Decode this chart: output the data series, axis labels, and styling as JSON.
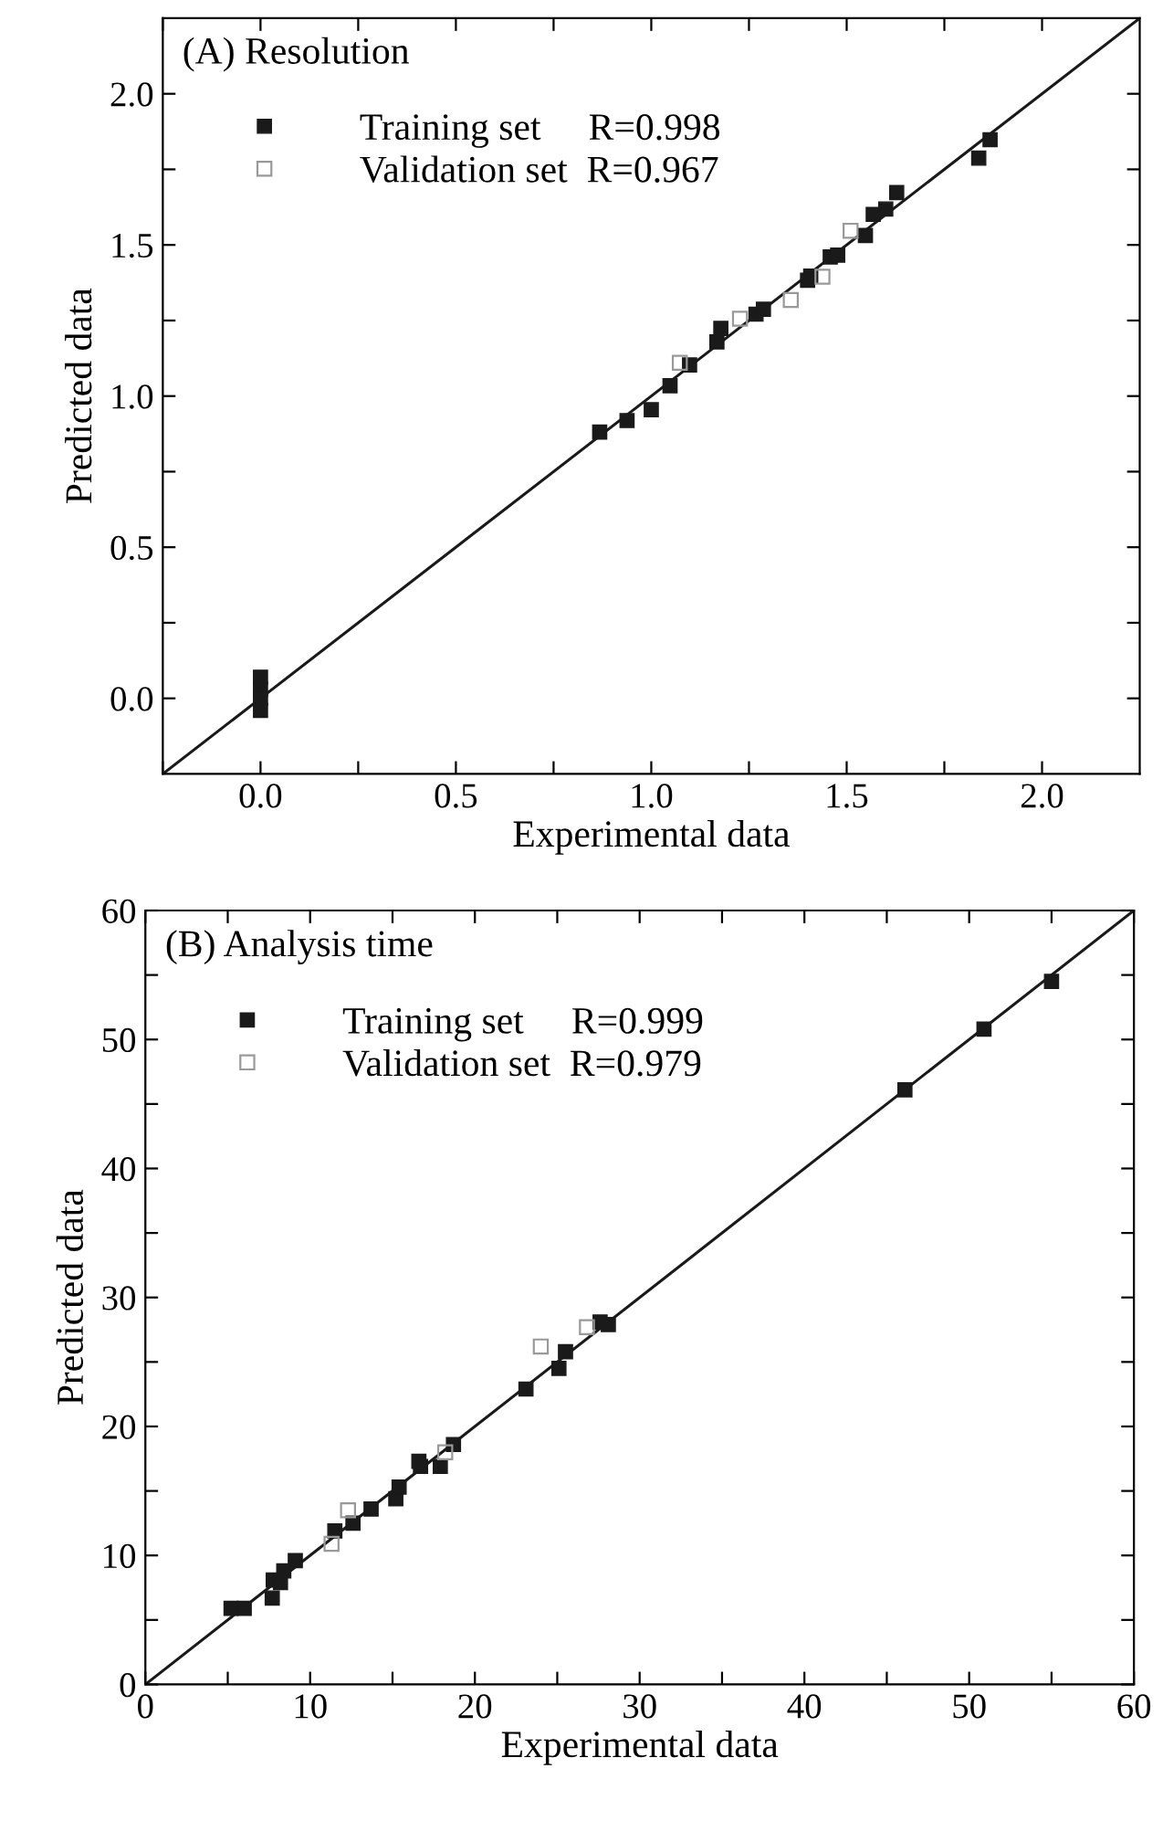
{
  "chart_data": [
    {
      "type": "scatter",
      "title": "(A) Resolution",
      "xlabel": "Experimental data",
      "ylabel": "Predicted data",
      "xlim": [
        -0.25,
        2.25
      ],
      "ylim": [
        -0.25,
        2.25
      ],
      "xticks": [
        {
          "value": -0.25,
          "label": null
        },
        {
          "value": 0,
          "label": "0.0"
        },
        {
          "value": 0.25,
          "label": null
        },
        0.5,
        {
          "value": 0.75,
          "label": null
        },
        {
          "value": 1,
          "label": "1.0"
        },
        {
          "value": 1.25,
          "label": null
        },
        1.5,
        {
          "value": 1.75,
          "label": null
        },
        {
          "value": 2,
          "label": "2.0"
        }
      ],
      "yticks": [
        {
          "value": 0,
          "label": "0.0"
        },
        {
          "value": 0.25,
          "label": null
        },
        0.5,
        {
          "value": 0.75,
          "label": null
        },
        {
          "value": 1,
          "label": "1.0"
        },
        {
          "value": 1.25,
          "label": null
        },
        1.5,
        {
          "value": 1.75,
          "label": null
        },
        {
          "value": 2,
          "label": "2.0"
        }
      ],
      "legend": "top left",
      "grid": false,
      "series": [
        {
          "name": "Training set     R=0.998",
          "color": "#1a1a1a",
          "marker": "square",
          "x": [
            0,
            0,
            0,
            0,
            0.868,
            0.938,
            1.0,
            1.048,
            1.098,
            1.168,
            1.178,
            1.268,
            1.287,
            1.4,
            1.408,
            1.458,
            1.477,
            1.548,
            1.568,
            1.6,
            1.628,
            1.838,
            1.867
          ],
          "values": [
            0.07,
            0.03,
            0.0,
            -0.04,
            0.881,
            0.919,
            0.955,
            1.034,
            1.103,
            1.179,
            1.224,
            1.271,
            1.287,
            1.383,
            1.397,
            1.46,
            1.466,
            1.531,
            1.601,
            1.619,
            1.673,
            1.787,
            1.848
          ]
        },
        {
          "name": "Validation set  R=0.967",
          "color": "#999999",
          "marker": "square",
          "x": [
            1.073,
            1.227,
            1.357,
            1.438,
            1.51
          ],
          "values": [
            1.11,
            1.256,
            1.318,
            1.395,
            1.547
          ]
        },
        {
          "type": "line",
          "color": "#1a1a1a",
          "x": [
            -0.25,
            2.25
          ],
          "values": [
            -0.25,
            2.25
          ]
        }
      ]
    },
    {
      "type": "scatter",
      "title": "(B) Analysis time",
      "xlabel": "Experimental data",
      "ylabel": "Predicted data",
      "xlim": [
        0,
        60
      ],
      "ylim": [
        0,
        60
      ],
      "xticks": [
        0,
        {
          "value": 5,
          "label": null
        },
        10,
        {
          "value": 15,
          "label": null
        },
        20,
        {
          "value": 25,
          "label": null
        },
        30,
        {
          "value": 35,
          "label": null
        },
        40,
        {
          "value": 45,
          "label": null
        },
        50,
        {
          "value": 55,
          "label": null
        },
        60
      ],
      "yticks": [
        0,
        {
          "value": 5,
          "label": null
        },
        10,
        {
          "value": 15,
          "label": null
        },
        20,
        {
          "value": 25,
          "label": null
        },
        30,
        {
          "value": 35,
          "label": null
        },
        40,
        {
          "value": 45,
          "label": null
        },
        50,
        {
          "value": 55,
          "label": null
        },
        60
      ],
      "legend": "top left",
      "grid": false,
      "series": [
        {
          "name": "Training set     R=0.999",
          "color": "#1a1a1a",
          "marker": "square",
          "x": [
            5.2,
            6.0,
            7.7,
            7.76,
            8.4,
            8.2,
            9.1,
            11.5,
            12.6,
            13.7,
            15.2,
            15.4,
            16.6,
            16.7,
            17.9,
            18.7,
            23.1,
            25.1,
            25.5,
            27.6,
            28.1,
            46.1,
            50.9,
            55.0
          ],
          "values": [
            5.9,
            5.9,
            6.7,
            8.1,
            8.8,
            7.9,
            9.6,
            11.9,
            12.5,
            13.6,
            14.4,
            15.3,
            17.3,
            16.9,
            16.9,
            18.6,
            22.9,
            24.5,
            25.8,
            28.1,
            27.9,
            46.1,
            50.8,
            54.5
          ]
        },
        {
          "name": "Validation set  R=0.979",
          "color": "#999999",
          "marker": "square",
          "x": [
            11.3,
            12.3,
            18.2,
            24.0,
            26.8
          ],
          "values": [
            10.9,
            13.5,
            18.0,
            26.2,
            27.7
          ]
        },
        {
          "type": "line",
          "color": "#1a1a1a",
          "x": [
            0,
            60
          ],
          "values": [
            0,
            60
          ]
        }
      ]
    }
  ]
}
